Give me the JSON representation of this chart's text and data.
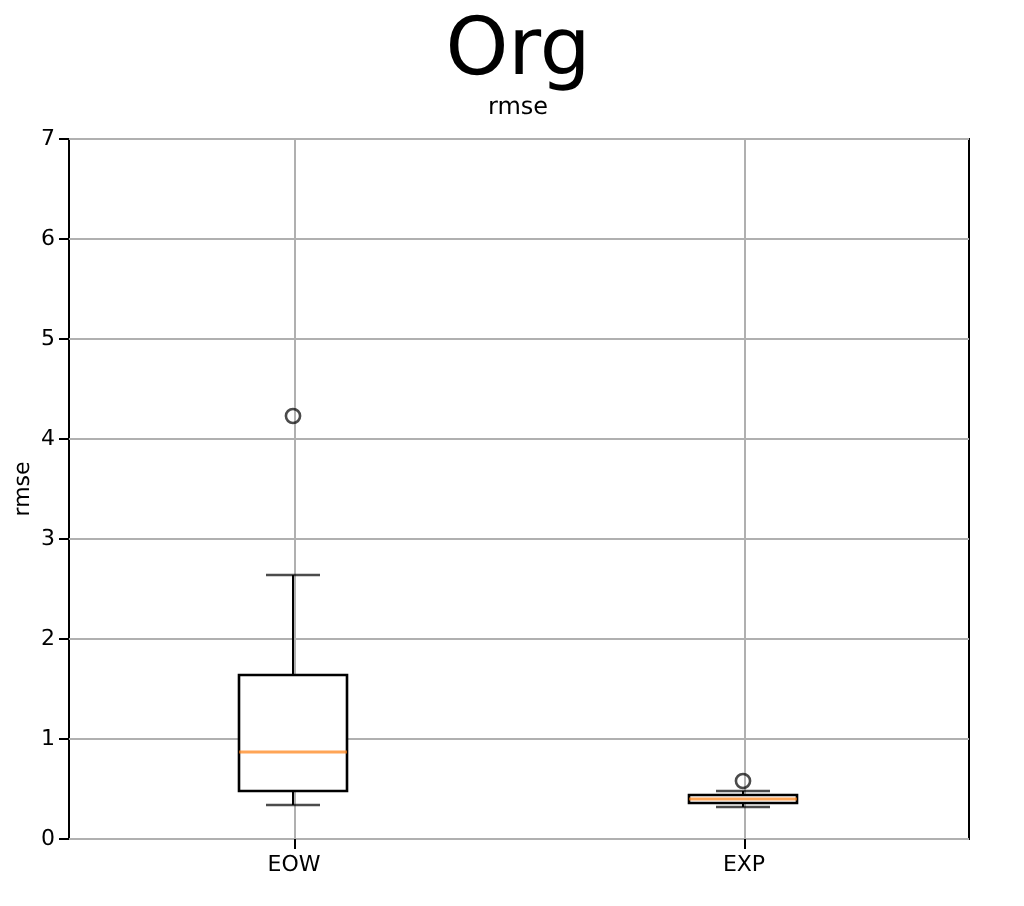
{
  "chart_data": {
    "type": "box",
    "title": "Org",
    "subtitle": "rmse",
    "ylabel": "rmse",
    "categories": [
      "EOW",
      "EXP"
    ],
    "boxes": [
      {
        "low": 0.33,
        "q1": 0.47,
        "median": 0.86,
        "q3": 1.63,
        "high": 2.63,
        "outliers": [
          4.22
        ]
      },
      {
        "low": 0.31,
        "q1": 0.35,
        "median": 0.39,
        "q3": 0.43,
        "high": 0.47,
        "outliers": [
          0.57
        ]
      }
    ],
    "color": "#000000",
    "ylim": [
      0,
      7
    ],
    "yticks": [
      0,
      1,
      2,
      3,
      4,
      5,
      6,
      7
    ],
    "grid": true
  }
}
